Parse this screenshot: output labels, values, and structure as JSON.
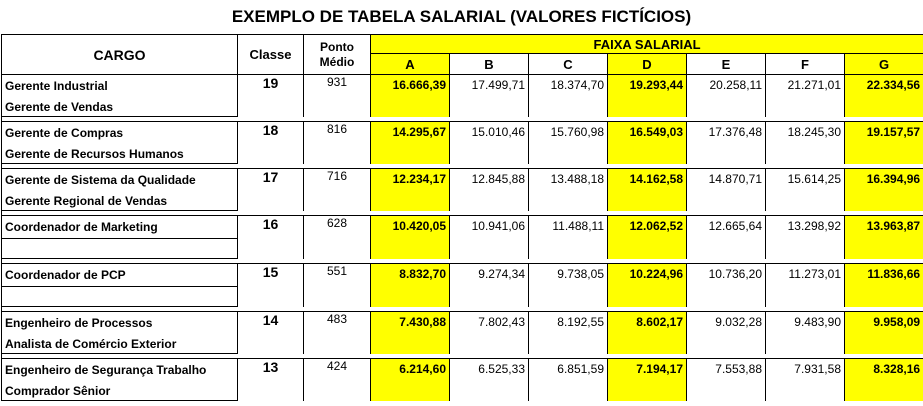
{
  "title": "EXEMPLO DE TABELA SALARIAL (VALORES FICTÍCIOS)",
  "headers": {
    "cargo": "CARGO",
    "classe": "Classe",
    "ponto_line1": "Ponto",
    "ponto_line2": "Médio",
    "faixa": "FAIXA SALARIAL",
    "letters": [
      "A",
      "B",
      "C",
      "D",
      "E",
      "F",
      "G"
    ]
  },
  "highlight_color": "#ffff00",
  "highlighted_columns": [
    "A",
    "D",
    "G"
  ],
  "groups": [
    {
      "cargos": [
        "Gerente Industrial",
        "Gerente de Vendas"
      ],
      "classe": "19",
      "ponto": "931",
      "values": [
        "16.666,39",
        "17.499,71",
        "18.374,70",
        "19.293,44",
        "20.258,11",
        "21.271,01",
        "22.334,56"
      ]
    },
    {
      "cargos": [
        "Gerente de Compras",
        "Gerente de Recursos Humanos"
      ],
      "classe": "18",
      "ponto": "816",
      "values": [
        "14.295,67",
        "15.010,46",
        "15.760,98",
        "16.549,03",
        "17.376,48",
        "18.245,30",
        "19.157,57"
      ]
    },
    {
      "cargos": [
        "Gerente de Sistema da Qualidade",
        "Gerente Regional de Vendas"
      ],
      "classe": "17",
      "ponto": "716",
      "values": [
        "12.234,17",
        "12.845,88",
        "13.488,18",
        "14.162,58",
        "14.870,71",
        "15.614,25",
        "16.394,96"
      ]
    },
    {
      "cargos": [
        "Coordenador de Marketing"
      ],
      "classe": "16",
      "ponto": "628",
      "values": [
        "10.420,05",
        "10.941,06",
        "11.488,11",
        "12.062,52",
        "12.665,64",
        "13.298,92",
        "13.963,87"
      ]
    },
    {
      "cargos": [
        "Coordenador de PCP"
      ],
      "classe": "15",
      "ponto": "551",
      "values": [
        "8.832,70",
        "9.274,34",
        "9.738,05",
        "10.224,96",
        "10.736,20",
        "11.273,01",
        "11.836,66"
      ]
    },
    {
      "cargos": [
        "Engenheiro de Processos",
        "Analista de Comércio Exterior"
      ],
      "classe": "14",
      "ponto": "483",
      "values": [
        "7.430,88",
        "7.802,43",
        "8.192,55",
        "8.602,17",
        "9.032,28",
        "9.483,90",
        "9.958,09"
      ]
    },
    {
      "cargos": [
        "Engenheiro de Segurança Trabalho",
        "Comprador Sênior"
      ],
      "classe": "13",
      "ponto": "424",
      "values": [
        "6.214,60",
        "6.525,33",
        "6.851,59",
        "7.194,17",
        "7.553,88",
        "7.931,58",
        "8.328,16"
      ]
    }
  ]
}
